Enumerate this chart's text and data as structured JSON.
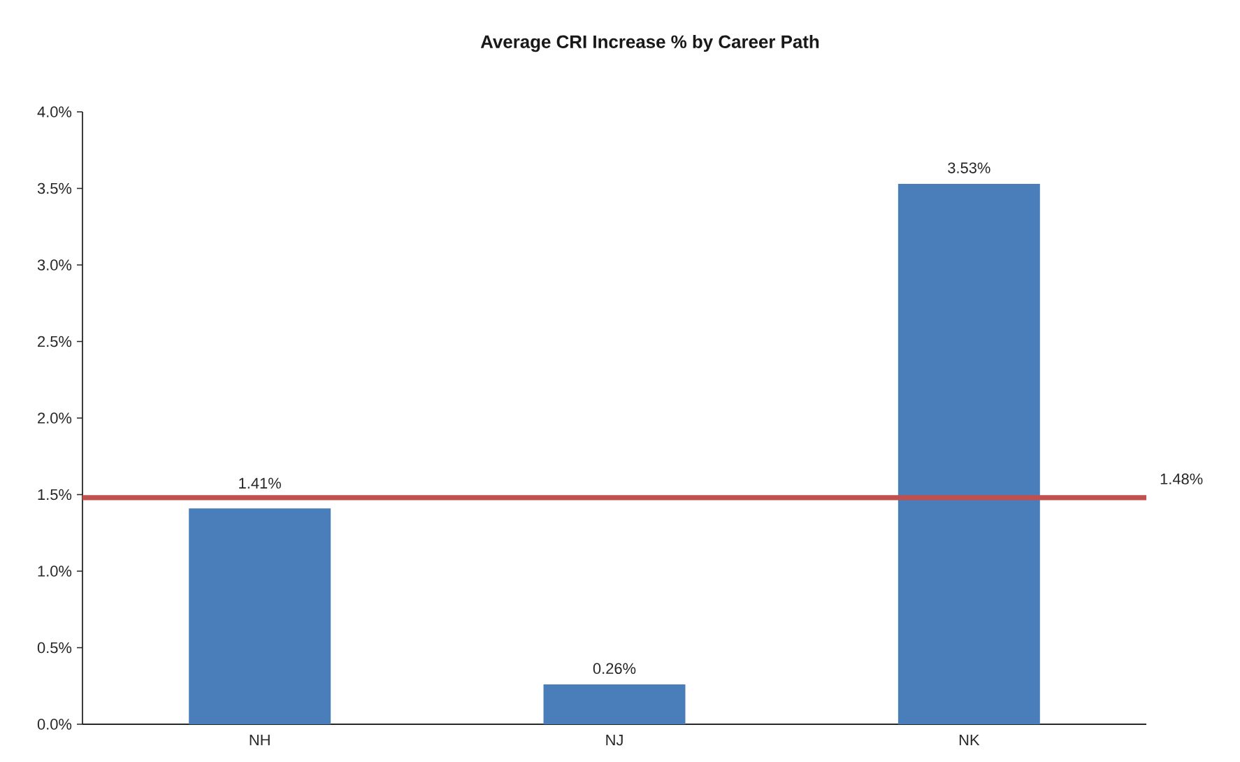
{
  "chart_data": {
    "type": "bar",
    "title": "Average CRI Increase % by Career Path",
    "categories": [
      "NH",
      "NJ",
      "NK"
    ],
    "values": [
      1.41,
      0.26,
      3.53
    ],
    "value_labels": [
      "1.41%",
      "0.26%",
      "3.53%"
    ],
    "color": "#4a7ebb",
    "ylim": [
      0,
      4
    ],
    "yticks": [
      {
        "value": 0,
        "label": "0.0%"
      },
      {
        "value": 0.5,
        "label": "0.5%"
      },
      {
        "value": 1,
        "label": "1.0%"
      },
      {
        "value": 1.5,
        "label": "1.5%"
      },
      {
        "value": 2,
        "label": "2.0%"
      },
      {
        "value": 2.5,
        "label": "2.5%"
      },
      {
        "value": 3,
        "label": "3.0%"
      },
      {
        "value": 3.5,
        "label": "3.5%"
      },
      {
        "value": 4,
        "label": "4.0%"
      }
    ],
    "ref_lines": [
      {
        "axis": "y",
        "value": 1.48,
        "label": "1.48%",
        "color": "#c0504d"
      }
    ]
  }
}
